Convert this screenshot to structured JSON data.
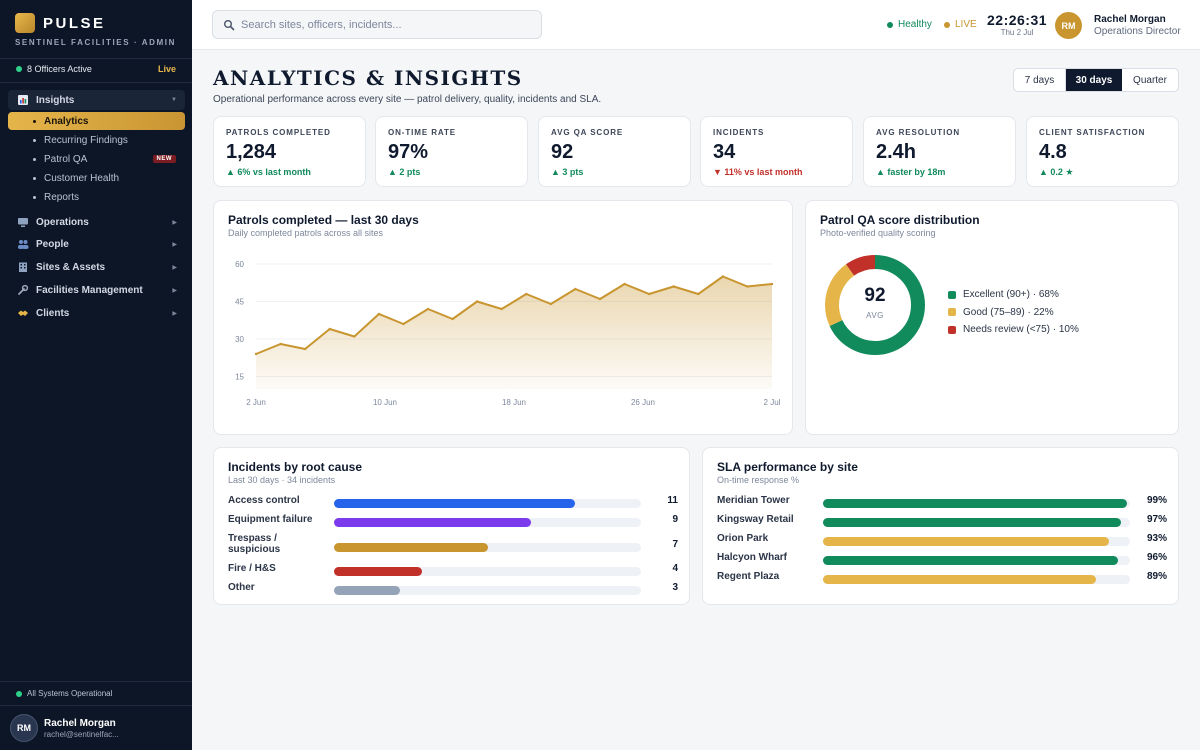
{
  "brand": {
    "name": "PULSE",
    "subtitle": "SENTINEL FACILITIES · ADMIN"
  },
  "sidebar": {
    "officers_active": "8 Officers Active",
    "live_label": "Live",
    "sections": [
      {
        "label": "Insights",
        "icon": "bar-chart-icon",
        "open": true
      },
      {
        "label": "Operations",
        "icon": "monitor-icon"
      },
      {
        "label": "People",
        "icon": "people-icon"
      },
      {
        "label": "Sites & Assets",
        "icon": "building-icon"
      },
      {
        "label": "Facilities Management",
        "icon": "wrench-icon"
      },
      {
        "label": "Clients",
        "icon": "handshake-icon"
      }
    ],
    "insights_items": [
      {
        "label": "Analytics",
        "active": true
      },
      {
        "label": "Recurring Findings"
      },
      {
        "label": "Patrol QA",
        "badge": "NEW"
      },
      {
        "label": "Customer Health"
      },
      {
        "label": "Reports"
      }
    ],
    "system_status": "All Systems Operational",
    "user": {
      "initials": "RM",
      "name": "Rachel Morgan",
      "email": "rachel@sentinelfac..."
    }
  },
  "topbar": {
    "search_placeholder": "Search sites, officers, incidents...",
    "health": "Healthy",
    "live": "LIVE",
    "time": "22:26:31",
    "date": "Thu 2 Jul",
    "user": {
      "initials": "RM",
      "name": "Rachel Morgan",
      "role": "Operations Director"
    }
  },
  "page": {
    "title": "ANALYTICS & INSIGHTS",
    "subtitle": "Operational performance across every site — patrol delivery, quality, incidents and SLA.",
    "ranges": [
      "7 days",
      "30 days",
      "Quarter"
    ],
    "selected_range": "30 days"
  },
  "kpis": [
    {
      "label": "PATROLS COMPLETED",
      "value": "1,284",
      "delta": "▲ 6% vs last month",
      "trend": "up"
    },
    {
      "label": "ON-TIME RATE",
      "value": "97%",
      "delta": "▲ 2 pts",
      "trend": "up"
    },
    {
      "label": "AVG QA SCORE",
      "value": "92",
      "delta": "▲ 3 pts",
      "trend": "up"
    },
    {
      "label": "INCIDENTS",
      "value": "34",
      "delta": "▼ 11% vs last month",
      "trend": "down"
    },
    {
      "label": "AVG RESOLUTION",
      "value": "2.4h",
      "delta": "▲ faster by 18m",
      "trend": "up"
    },
    {
      "label": "CLIENT SATISFACTION",
      "value": "4.8",
      "delta": "▲ 0.2 ★",
      "trend": "up"
    }
  ],
  "patrols_chart": {
    "title": "Patrols completed — last 30 days",
    "subtitle": "Daily completed patrols across all sites",
    "chart_data": {
      "type": "area",
      "xlabels": [
        "2 Jun",
        "10 Jun",
        "18 Jun",
        "26 Jun",
        "2 Jul"
      ],
      "yticks": [
        15,
        30,
        45,
        60
      ],
      "ylim": [
        10,
        62
      ],
      "values": [
        24,
        28,
        26,
        34,
        31,
        40,
        36,
        42,
        38,
        45,
        42,
        48,
        44,
        50,
        46,
        52,
        48,
        51,
        48,
        55,
        51,
        52
      ],
      "color": "#c8952f"
    }
  },
  "qa_chart": {
    "title": "Patrol QA score distribution",
    "subtitle": "Photo-verified quality scoring",
    "center_value": "92",
    "center_label": "AVG",
    "chart_data": {
      "type": "pie",
      "slices": [
        {
          "label": "Excellent (90+) · 68%",
          "value": 68,
          "color": "#118a5c"
        },
        {
          "label": "Good (75–89) · 22%",
          "value": 22,
          "color": "#e5b54a"
        },
        {
          "label": "Needs review (<75) · 10%",
          "value": 10,
          "color": "#c2302a"
        }
      ]
    }
  },
  "incidents_chart": {
    "title": "Incidents by root cause",
    "subtitle": "Last 30 days · 34 incidents",
    "chart_data": {
      "type": "bar",
      "max": 14,
      "rows": [
        {
          "label": "Access control",
          "value": 11,
          "display": "11",
          "color": "#2563eb"
        },
        {
          "label": "Equipment failure",
          "value": 9,
          "display": "9",
          "color": "#7c3aed"
        },
        {
          "label": "Trespass / suspicious",
          "value": 7,
          "display": "7",
          "color": "#c8952f"
        },
        {
          "label": "Fire / H&S",
          "value": 4,
          "display": "4",
          "color": "#c2302a"
        },
        {
          "label": "Other",
          "value": 3,
          "display": "3",
          "color": "#94a3b8"
        }
      ]
    }
  },
  "sla_chart": {
    "title": "SLA performance by site",
    "subtitle": "On-time response %",
    "chart_data": {
      "type": "bar",
      "max": 100,
      "rows": [
        {
          "label": "Meridian Tower",
          "value": 99,
          "display": "99%",
          "color": "#118a5c"
        },
        {
          "label": "Kingsway Retail",
          "value": 97,
          "display": "97%",
          "color": "#118a5c"
        },
        {
          "label": "Orion Park",
          "value": 93,
          "display": "93%",
          "color": "#e5b54a"
        },
        {
          "label": "Halcyon Wharf",
          "value": 96,
          "display": "96%",
          "color": "#118a5c"
        },
        {
          "label": "Regent Plaza",
          "value": 89,
          "display": "89%",
          "color": "#e5b54a"
        }
      ]
    }
  },
  "colors": {
    "accent": "#e5b54a",
    "healthy": "#118a5c",
    "live": "#c8952f",
    "sidebar_bg": "#0d1627"
  }
}
